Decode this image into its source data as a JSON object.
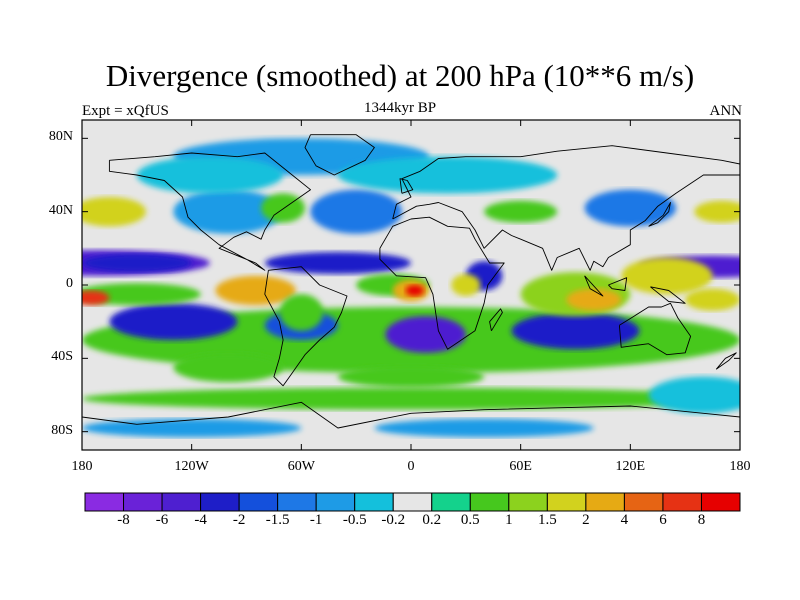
{
  "title": "Divergence (smoothed) at 200 hPa (10**6 m/s)",
  "subtitle_left": "Expt = xQfUS",
  "subtitle_center": "1344kyr BP",
  "subtitle_right": "ANN",
  "lat_labels": [
    "80N",
    "40N",
    "0",
    "40S",
    "80S"
  ],
  "lon_labels": [
    "180",
    "120W",
    "60W",
    "0",
    "60E",
    "120E",
    "180"
  ],
  "colorbar": {
    "labels": [
      "-8",
      "-6",
      "-4",
      "-2",
      "-1.5",
      "-1",
      "-0.5",
      "-0.2",
      "0.2",
      "0.5",
      "1",
      "1.5",
      "2",
      "4",
      "6",
      "8"
    ],
    "colors": [
      "#8a2be2",
      "#6a22d8",
      "#4e1fd0",
      "#1e1ec8",
      "#1450dc",
      "#1e78e6",
      "#1e9be6",
      "#14c0dc",
      "#e6e6e6",
      "#14d28c",
      "#46c81e",
      "#8cd21e",
      "#d2d21e",
      "#e6aa14",
      "#e66414",
      "#e63214",
      "#e60000"
    ]
  },
  "palette": {
    "background": "#e6e6e6",
    "coastline": "#000000",
    "frame": "#000000"
  }
}
